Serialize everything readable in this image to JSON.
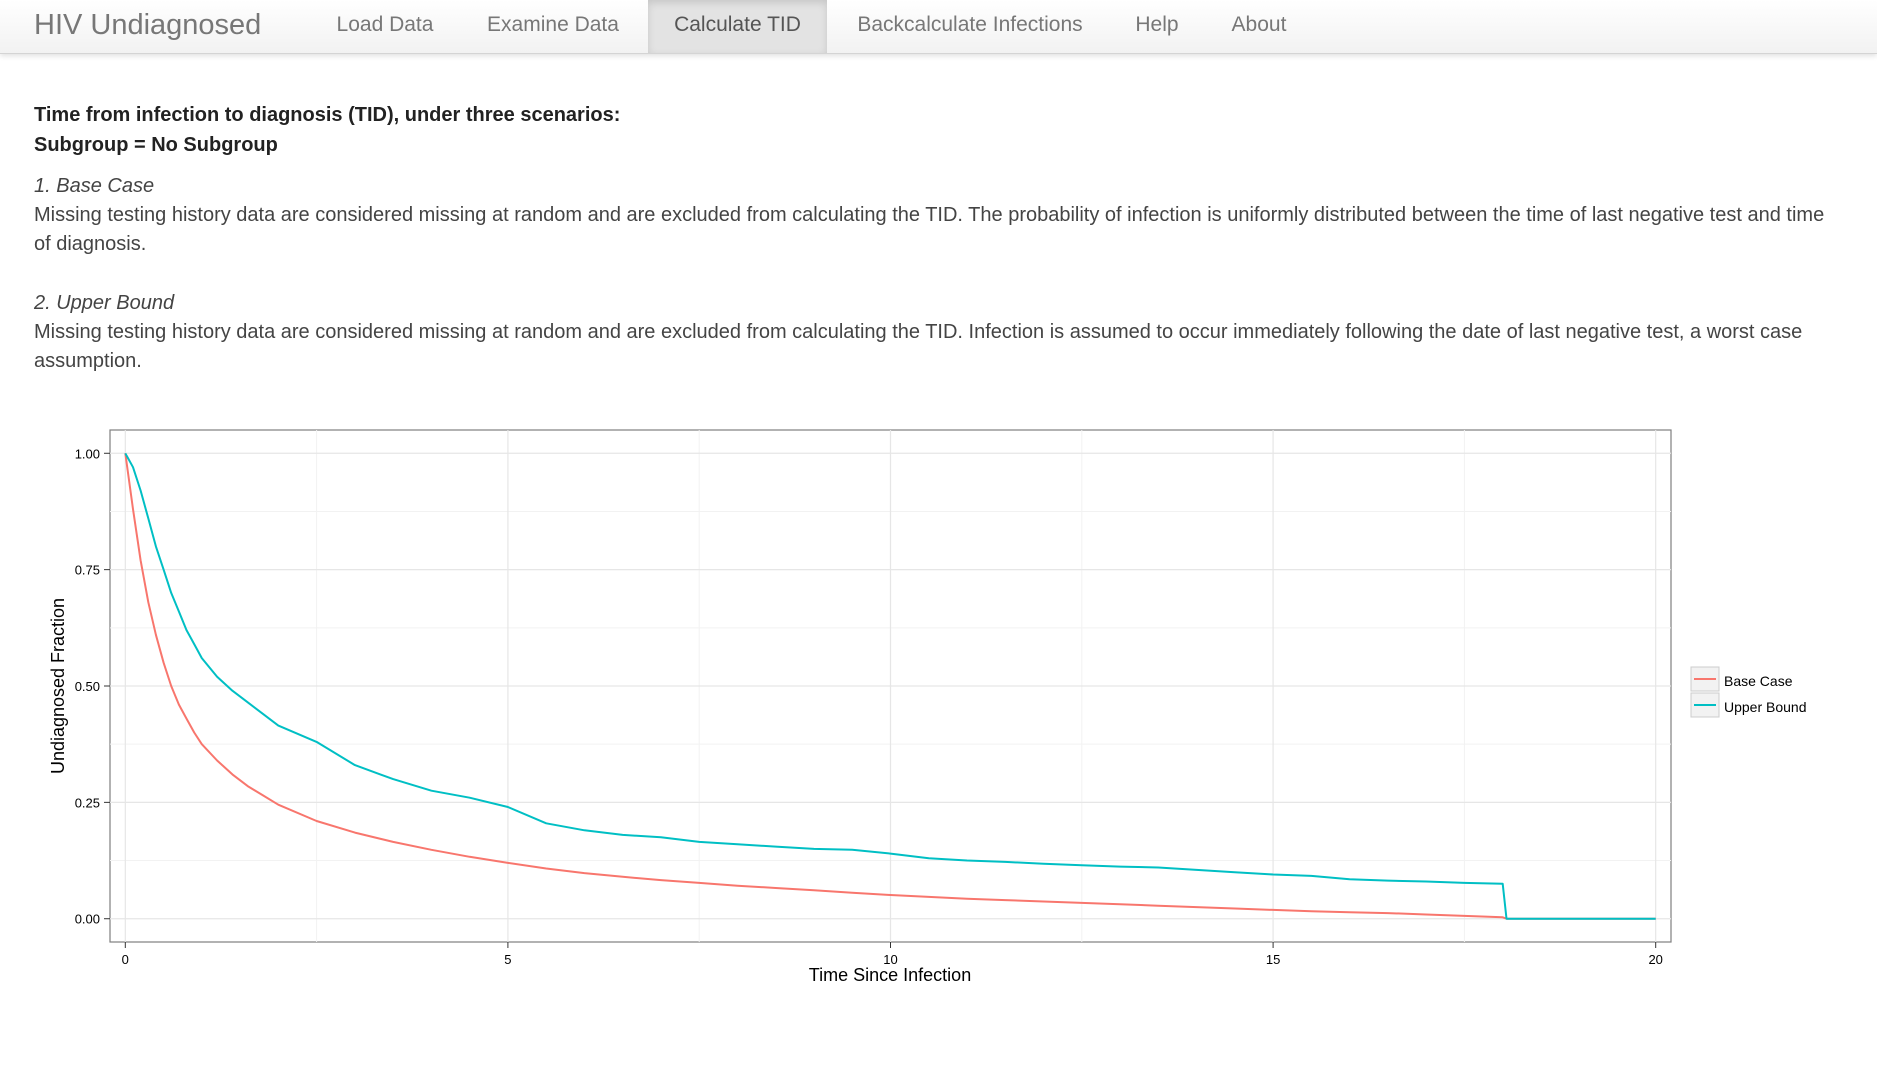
{
  "navbar": {
    "brand": "HIV Undiagnosed",
    "tabs": [
      {
        "label": "Load Data",
        "active": false
      },
      {
        "label": "Examine Data",
        "active": false
      },
      {
        "label": "Calculate TID",
        "active": true
      },
      {
        "label": "Backcalculate Infections",
        "active": false
      },
      {
        "label": "Help",
        "active": false
      },
      {
        "label": "About",
        "active": false
      }
    ]
  },
  "main": {
    "heading_line1": "Time from infection to diagnosis (TID), under three scenarios:",
    "heading_line2": "Subgroup = No Subgroup",
    "scenarios": [
      {
        "title": "1. Base Case",
        "description": "Missing testing history data are considered missing at random and are excluded from calculating the TID. The probability of infection is uniformly distributed between the time of last negative test and time of diagnosis."
      },
      {
        "title": "2. Upper Bound",
        "description": "Missing testing history data are considered missing at random and are excluded from calculating the TID. Infection is assumed to occur immediately following the date of last negative test, a worst case assumption."
      }
    ]
  },
  "chart_data": {
    "type": "line",
    "xlabel": "Time Since Infection",
    "ylabel": "Undiagnosed Fraction",
    "xlim": [
      -0.2,
      20.2
    ],
    "ylim": [
      -0.05,
      1.05
    ],
    "xticks": [
      0,
      5,
      10,
      15,
      20
    ],
    "xtick_labels": [
      "0",
      "5",
      "10",
      "15",
      "20"
    ],
    "yticks": [
      0,
      0.25,
      0.5,
      0.75,
      1.0
    ],
    "ytick_labels": [
      "0.00",
      "0.25",
      "0.50",
      "0.75",
      "1.00"
    ],
    "grid": true,
    "legend_position": "right",
    "series": [
      {
        "name": "Base Case",
        "color": "#F8766D",
        "x": [
          0,
          0.1,
          0.2,
          0.3,
          0.4,
          0.5,
          0.6,
          0.7,
          0.8,
          0.9,
          1.0,
          1.2,
          1.4,
          1.6,
          1.8,
          2.0,
          2.5,
          3.0,
          3.5,
          4.0,
          4.5,
          5.0,
          5.5,
          6.0,
          6.5,
          7.0,
          7.5,
          8.0,
          8.5,
          9.0,
          9.5,
          10.0,
          10.5,
          11.0,
          11.5,
          12.0,
          12.5,
          13.0,
          13.5,
          14.0,
          14.5,
          15.0,
          15.5,
          16.0,
          16.5,
          17.0,
          17.5,
          18.0,
          18.05,
          19.0,
          20.0
        ],
        "y": [
          1.0,
          0.88,
          0.77,
          0.68,
          0.61,
          0.55,
          0.5,
          0.46,
          0.43,
          0.4,
          0.375,
          0.34,
          0.31,
          0.285,
          0.265,
          0.245,
          0.21,
          0.185,
          0.165,
          0.148,
          0.133,
          0.12,
          0.108,
          0.098,
          0.09,
          0.083,
          0.077,
          0.071,
          0.066,
          0.061,
          0.056,
          0.051,
          0.047,
          0.043,
          0.04,
          0.037,
          0.034,
          0.031,
          0.028,
          0.025,
          0.022,
          0.019,
          0.016,
          0.014,
          0.012,
          0.009,
          0.006,
          0.003,
          0.0,
          0.0,
          0.0
        ]
      },
      {
        "name": "Upper Bound",
        "color": "#00BFC4",
        "x": [
          0,
          0.1,
          0.2,
          0.3,
          0.4,
          0.5,
          0.6,
          0.7,
          0.8,
          0.9,
          1.0,
          1.2,
          1.4,
          1.6,
          1.8,
          2.0,
          2.5,
          3.0,
          3.5,
          4.0,
          4.5,
          5.0,
          5.5,
          6.0,
          6.5,
          7.0,
          7.5,
          8.0,
          8.5,
          9.0,
          9.5,
          10.0,
          10.5,
          11.0,
          11.5,
          12.0,
          12.5,
          13.0,
          13.5,
          14.0,
          14.5,
          15.0,
          15.5,
          16.0,
          16.5,
          17.0,
          17.5,
          18.0,
          18.05,
          19.0,
          20.0
        ],
        "y": [
          1.0,
          0.97,
          0.92,
          0.86,
          0.8,
          0.75,
          0.7,
          0.66,
          0.62,
          0.59,
          0.56,
          0.52,
          0.49,
          0.465,
          0.44,
          0.415,
          0.38,
          0.33,
          0.3,
          0.275,
          0.26,
          0.24,
          0.205,
          0.19,
          0.18,
          0.175,
          0.165,
          0.16,
          0.155,
          0.15,
          0.148,
          0.14,
          0.13,
          0.125,
          0.122,
          0.118,
          0.115,
          0.112,
          0.11,
          0.105,
          0.1,
          0.095,
          0.092,
          0.085,
          0.082,
          0.08,
          0.077,
          0.075,
          0.0,
          0.0,
          0.0
        ]
      }
    ]
  }
}
